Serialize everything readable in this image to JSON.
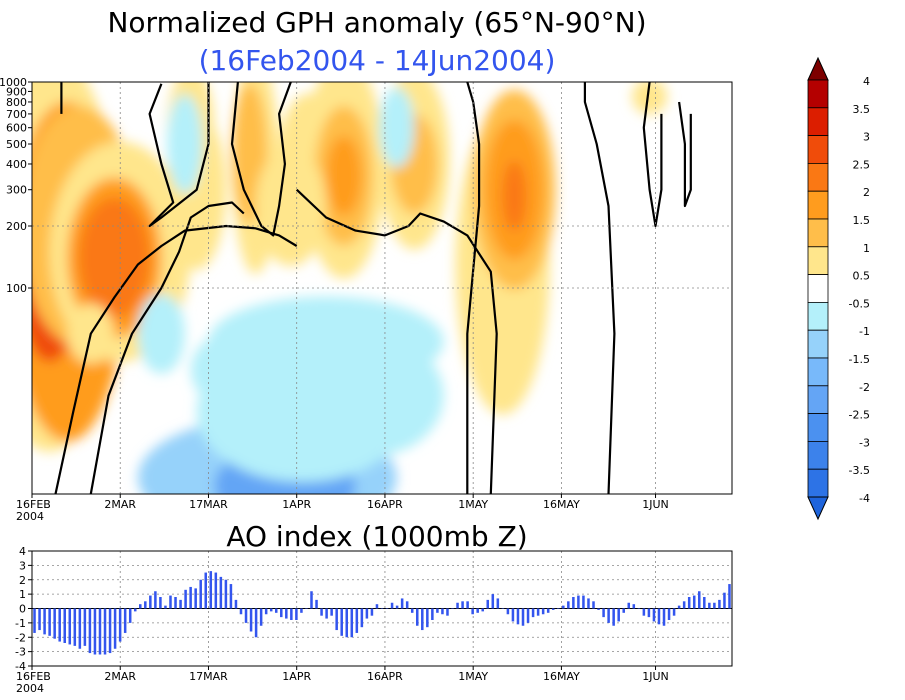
{
  "chart_data": [
    {
      "type": "heatmap",
      "title": "Normalized GPH anomaly (65°N-90°N)",
      "subtitle": "(16Feb2004 - 14Jun2004)",
      "x_ticks": [
        "16FEB",
        "2MAR",
        "17MAR",
        "1APR",
        "16APR",
        "1MAY",
        "16MAY",
        "1JUN"
      ],
      "x_year": "2004",
      "y_ticks": [
        "100",
        "200",
        "300",
        "400",
        "500",
        "600",
        "700",
        "800",
        "900",
        "1000"
      ],
      "y_scale": "log-pressure",
      "colorbar_levels": [
        "4",
        "3.5",
        "3",
        "2.5",
        "2",
        "1.5",
        "1",
        "0.5",
        "-0.5",
        "-1",
        "-1.5",
        "-2",
        "-2.5",
        "-3",
        "-3.5",
        "-4"
      ],
      "colors": {
        "warm": [
          "#7d0000",
          "#b40000",
          "#dc1e00",
          "#f04c0a",
          "#fa7814",
          "#ff9c1e",
          "#ffbe4a",
          "#ffe68c"
        ],
        "neutral": "#ffffff",
        "cool": [
          "#b4f0fa",
          "#96d2fa",
          "#78b9fa",
          "#64a5f5",
          "#4b91f0",
          "#3c82eb",
          "#2d73e6",
          "#1e64dc"
        ]
      }
    },
    {
      "type": "bar",
      "title": "AO index (1000mb Z)",
      "x_ticks": [
        "16FEB",
        "2MAR",
        "17MAR",
        "1APR",
        "16APR",
        "1MAY",
        "16MAY",
        "1JUN"
      ],
      "x_year": "2004",
      "y_ticks": [
        "4",
        "3",
        "2",
        "1",
        "0",
        "-1",
        "-2",
        "-3",
        "-4"
      ],
      "ylim": [
        -4,
        4
      ],
      "bar_color": "#3355ee",
      "values": [
        -1.7,
        -1.5,
        -1.8,
        -1.9,
        -2.1,
        -2.3,
        -2.4,
        -2.5,
        -2.6,
        -2.8,
        -2.6,
        -3.1,
        -3.2,
        -3.2,
        -3.2,
        -3.1,
        -2.8,
        -2.3,
        -1.7,
        -1.0,
        -0.2,
        0.3,
        0.5,
        0.9,
        1.2,
        0.8,
        0.2,
        0.9,
        0.8,
        0.6,
        1.3,
        1.5,
        1.4,
        2.0,
        2.5,
        2.6,
        2.5,
        2.2,
        2.0,
        1.7,
        0.6,
        -0.4,
        -1.0,
        -1.6,
        -2.0,
        -1.2,
        -0.4,
        -0.2,
        -0.3,
        -0.6,
        -0.7,
        -0.8,
        -0.8,
        -0.3,
        0.0,
        1.2,
        0.6,
        -0.5,
        -0.7,
        -0.5,
        -1.5,
        -1.9,
        -2.0,
        -2.0,
        -1.7,
        -1.3,
        -0.7,
        -0.5,
        0.3,
        0.0,
        0.0,
        0.4,
        0.2,
        0.7,
        0.5,
        -0.3,
        -1.2,
        -1.5,
        -1.3,
        -0.8,
        -0.3,
        -0.4,
        -0.5,
        0.0,
        0.4,
        0.5,
        0.5,
        -0.4,
        -0.3,
        -0.2,
        0.6,
        1.0,
        0.7,
        0.0,
        -0.4,
        -0.9,
        -1.1,
        -1.2,
        -1.0,
        -0.6,
        -0.5,
        -0.4,
        -0.3,
        -0.1,
        0.0,
        0.2,
        0.5,
        0.8,
        0.9,
        0.9,
        0.7,
        0.5,
        -0.1,
        -0.6,
        -1.0,
        -1.2,
        -0.9,
        -0.3,
        0.4,
        0.3,
        0.0,
        -0.5,
        -0.6,
        -0.9,
        -1.1,
        -1.2,
        -0.8,
        -0.5,
        0.2,
        0.5,
        0.8,
        0.9,
        1.2,
        0.8,
        0.4,
        0.4,
        0.6,
        1.1,
        1.7
      ]
    }
  ]
}
